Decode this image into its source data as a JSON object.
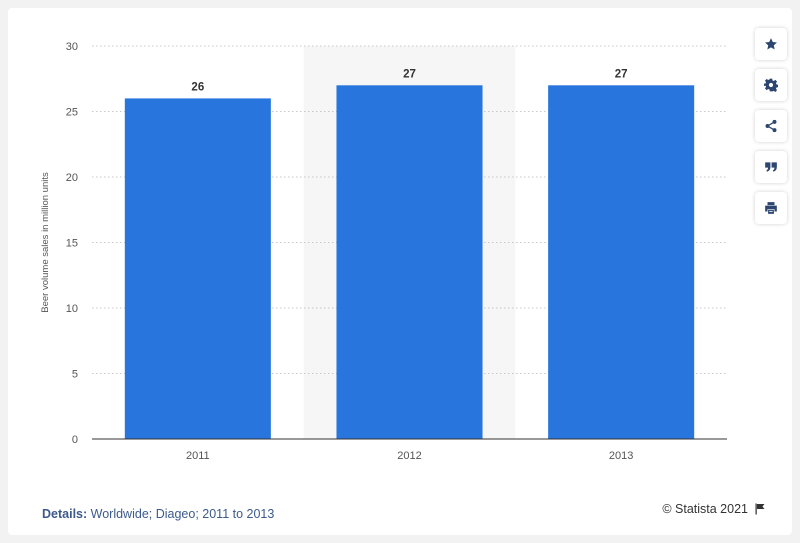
{
  "chart_data": {
    "type": "bar",
    "categories": [
      "2011",
      "2012",
      "2013"
    ],
    "values": [
      26,
      27,
      27
    ],
    "data_labels": [
      "26",
      "27",
      "27"
    ],
    "ylabel": "Beer volume sales in million units",
    "xlabel": "",
    "ylim": [
      0,
      30
    ],
    "yticks": [
      0,
      5,
      10,
      15,
      20,
      25,
      30
    ],
    "grid": true,
    "highlighted_category": "2012",
    "bar_color": "#2876dd",
    "highlight_band_color": "#f6f6f6"
  },
  "toolbar": {
    "buttons": [
      {
        "name": "favorite",
        "icon": "star-icon"
      },
      {
        "name": "settings",
        "icon": "gear-icon"
      },
      {
        "name": "share",
        "icon": "share-icon"
      },
      {
        "name": "cite",
        "icon": "quote-icon"
      },
      {
        "name": "print",
        "icon": "printer-icon"
      }
    ],
    "icon_color": "#2c4670"
  },
  "footer": {
    "details_label": "Details:",
    "details_text": "Worldwide; Diageo; 2011 to 2013",
    "credit": "© Statista 2021",
    "credit_icon": "flag-icon"
  }
}
